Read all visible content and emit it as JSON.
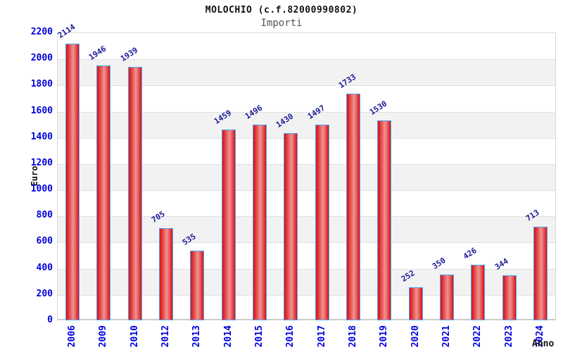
{
  "title": "MOLOCHIO (c.f.82000990802)",
  "subtitle": "Importi",
  "chart_data": {
    "type": "bar",
    "title": "MOLOCHIO (c.f.82000990802)",
    "subtitle": "Importi",
    "xlabel": "Anno",
    "ylabel": "Euro",
    "categories": [
      "2006",
      "2009",
      "2010",
      "2012",
      "2013",
      "2014",
      "2015",
      "2016",
      "2017",
      "2018",
      "2019",
      "2020",
      "2021",
      "2022",
      "2023",
      "2024"
    ],
    "values": [
      2114,
      1946,
      1939,
      705,
      535,
      1459,
      1496,
      1430,
      1497,
      1733,
      1530,
      252,
      350,
      426,
      344,
      713
    ],
    "ylim": [
      0,
      2200
    ],
    "ytick_step": 200,
    "grid": "horizontal-bands-alternating",
    "legend": "none",
    "colors": {
      "bar_fill_edge": "#d81010",
      "bar_fill_center": "#ef9494",
      "bar_border": "#4da6ff",
      "axis_tick_label": "#0000dd",
      "value_label": "#1a1a99",
      "band_gray": "#f2f2f2",
      "band_line": "#e0e0e0",
      "title_color": "#111111",
      "subtitle_color": "#555555"
    }
  }
}
